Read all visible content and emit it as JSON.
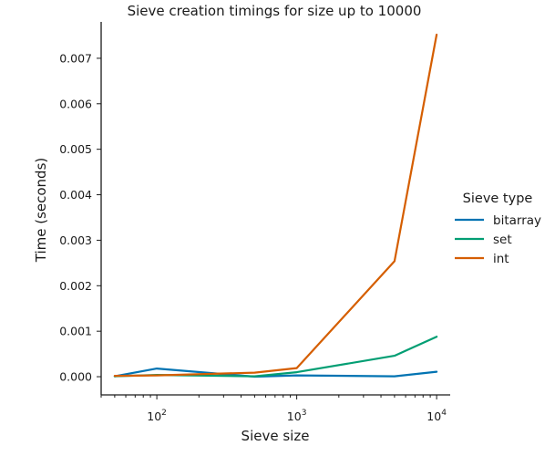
{
  "chart_data": {
    "type": "line",
    "title": "Sieve creation timings for size up to 10000",
    "xlabel": "Sieve size",
    "ylabel": "Time (seconds)",
    "xscale": "log",
    "xlim": [
      40,
      12500
    ],
    "ylim": [
      -0.0004,
      0.0078
    ],
    "x": [
      50,
      100,
      500,
      1000,
      5000,
      10000
    ],
    "x_ticks": [
      {
        "base": "10",
        "exp": "2",
        "value": 100
      },
      {
        "base": "10",
        "exp": "3",
        "value": 1000
      },
      {
        "base": "10",
        "exp": "4",
        "value": 10000
      }
    ],
    "y_ticks": [
      {
        "label": "0.000",
        "value": 0.0
      },
      {
        "label": "0.001",
        "value": 0.001
      },
      {
        "label": "0.002",
        "value": 0.002
      },
      {
        "label": "0.003",
        "value": 0.003
      },
      {
        "label": "0.004",
        "value": 0.004
      },
      {
        "label": "0.005",
        "value": 0.005
      },
      {
        "label": "0.006",
        "value": 0.006
      },
      {
        "label": "0.007",
        "value": 0.007
      }
    ],
    "legend": {
      "title": "Sieve type",
      "position": "right"
    },
    "grid": false,
    "series": [
      {
        "name": "bitarray",
        "color": "#0173b2",
        "values": [
          1e-05,
          0.00018,
          0.0,
          3e-05,
          1e-05,
          0.00011
        ]
      },
      {
        "name": "set",
        "color": "#029e73",
        "values": [
          1e-05,
          4e-05,
          1e-05,
          0.0001,
          0.00046,
          0.00088
        ]
      },
      {
        "name": "int",
        "color": "#d55e00",
        "values": [
          2e-05,
          3e-05,
          9e-05,
          0.00019,
          0.00254,
          0.00752
        ]
      }
    ]
  }
}
